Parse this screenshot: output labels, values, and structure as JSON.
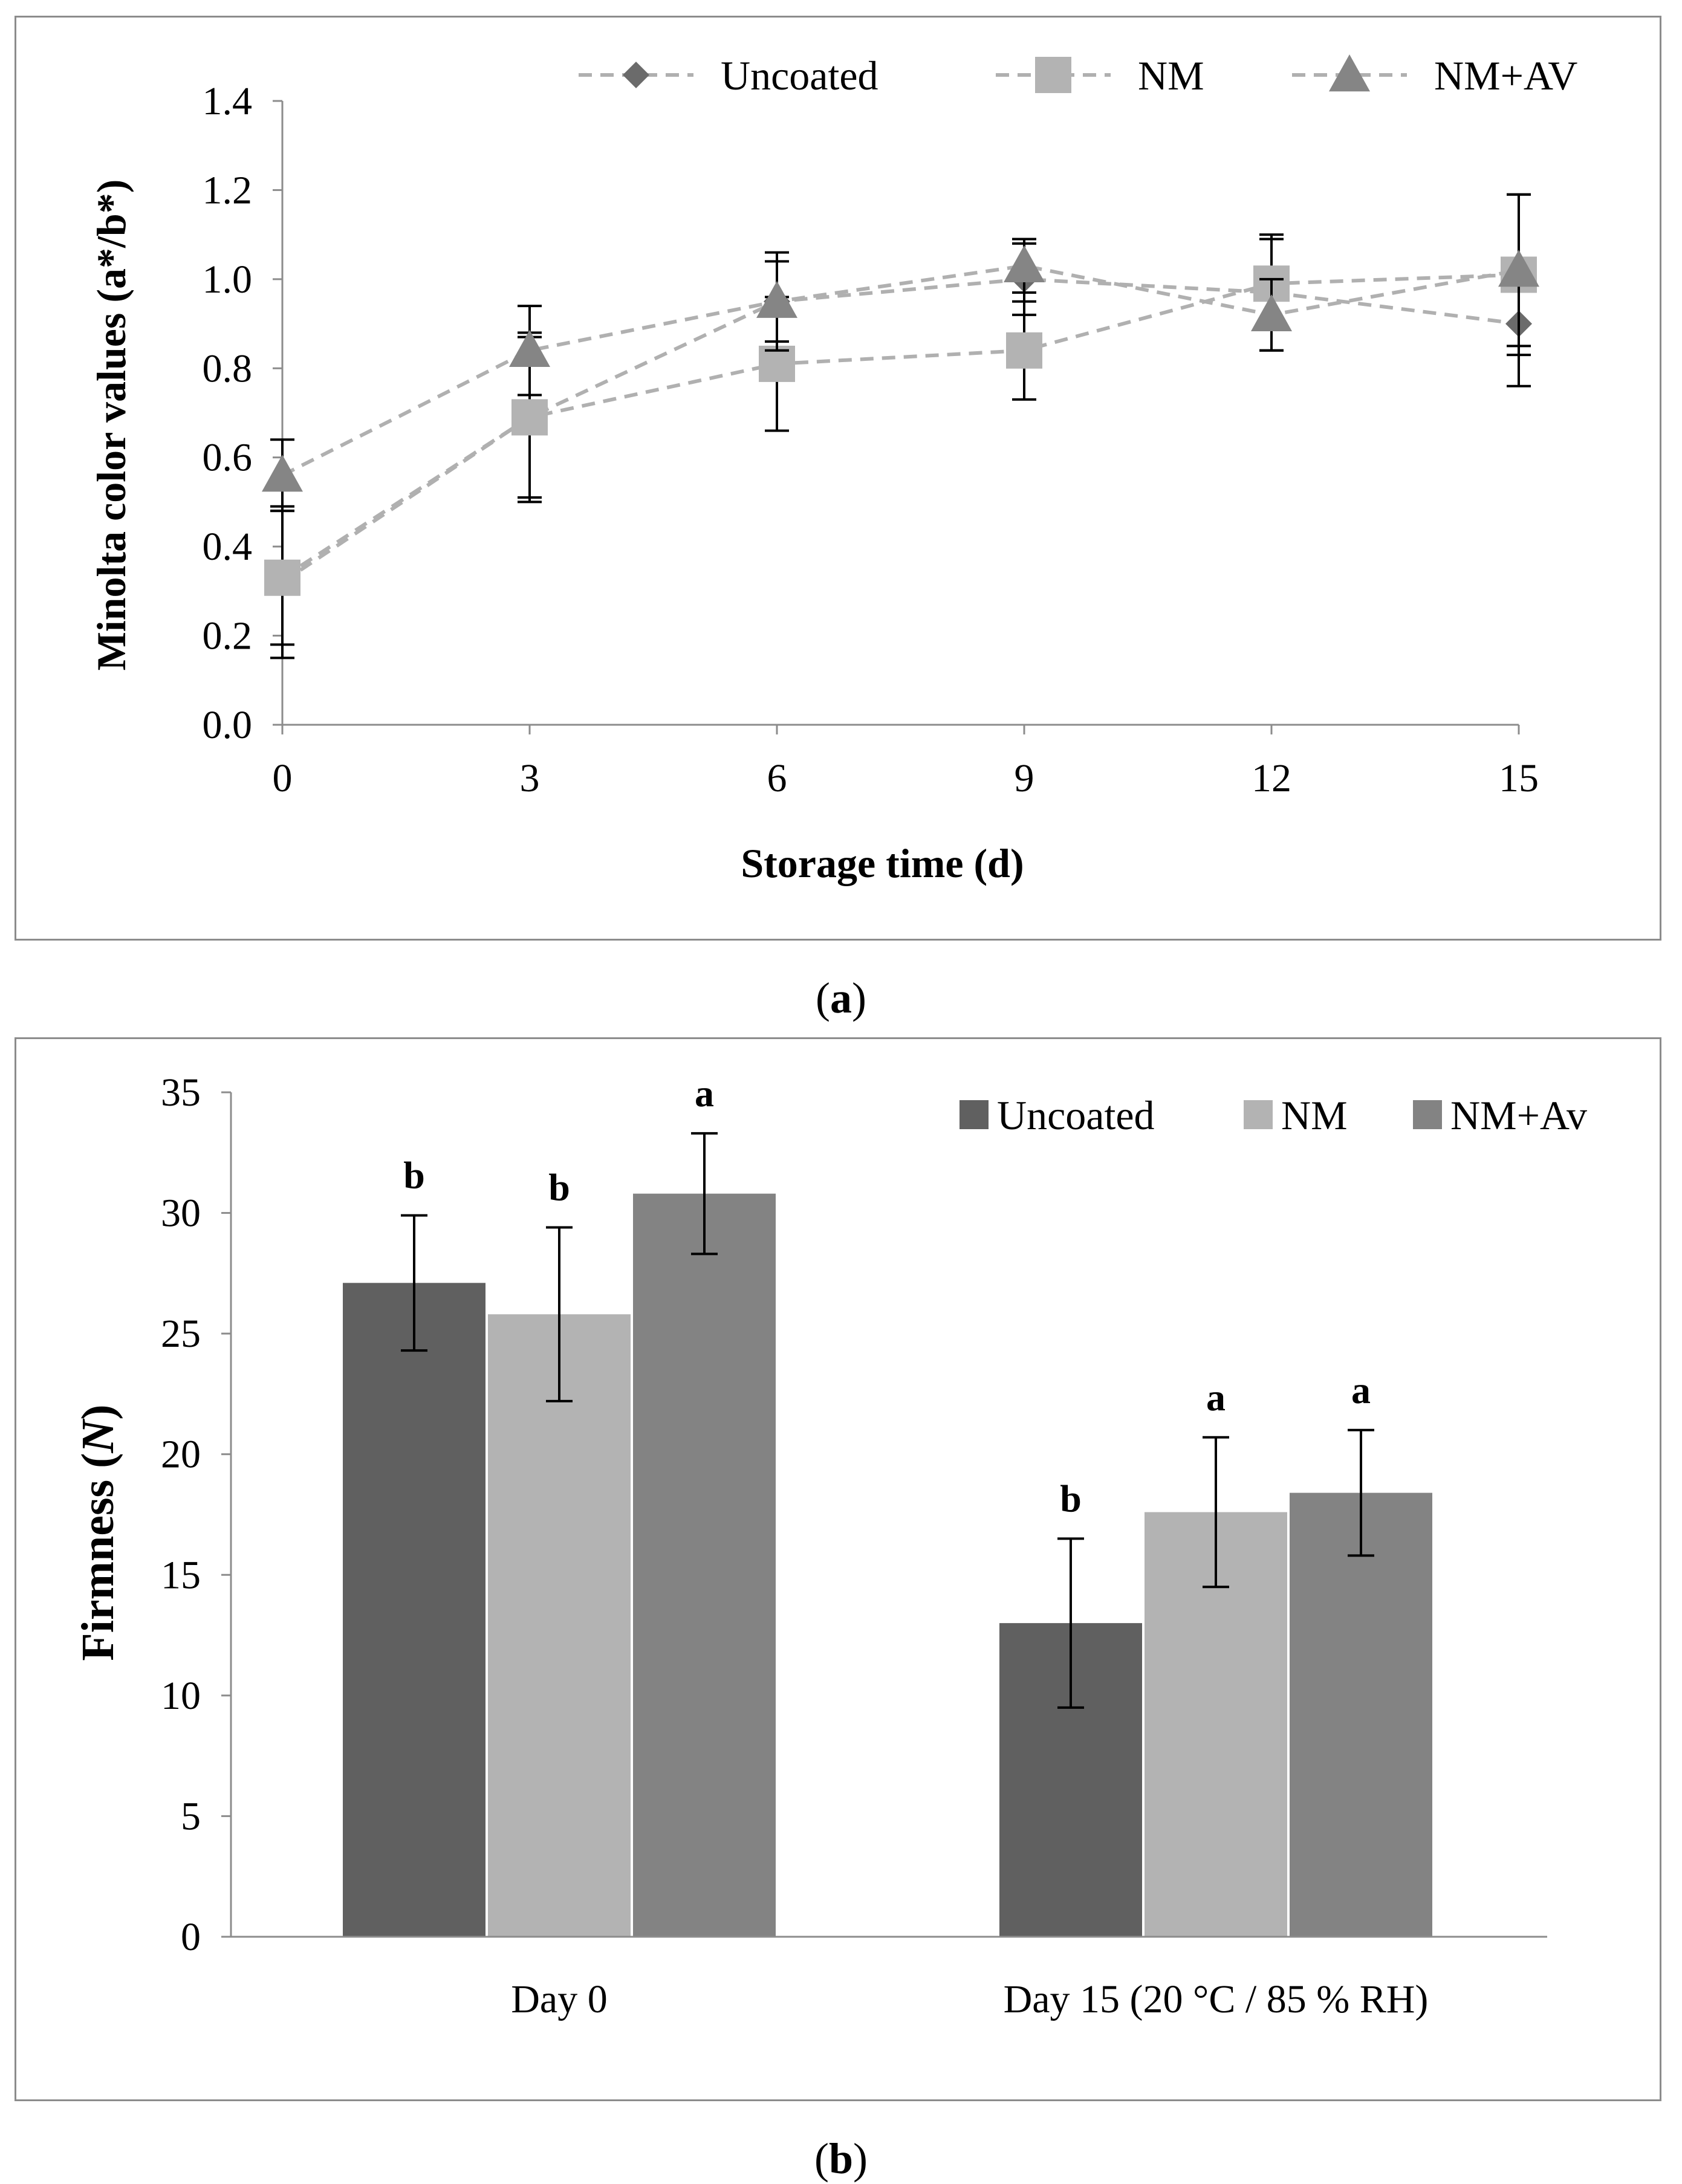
{
  "chart_data": [
    {
      "panel": "a",
      "type": "line",
      "caption_letter": "a",
      "xlabel": "Storage time (d)",
      "ylabel": "Minolta color values (a*/b*)",
      "ylim": [
        0,
        1.4
      ],
      "yticks": [
        "0.0",
        "0.2",
        "0.4",
        "0.6",
        "0.8",
        "1.0",
        "1.2",
        "1.4"
      ],
      "x": [
        0,
        3,
        6,
        9,
        12,
        15
      ],
      "xticks": [
        "0",
        "3",
        "6",
        "9",
        "12",
        "15"
      ],
      "legend_position": "top",
      "series": [
        {
          "name": "Uncoated",
          "marker": "diamond",
          "color": "#6b6b6b",
          "values": [
            0.32,
            0.69,
            0.95,
            1.0,
            0.97,
            0.9
          ],
          "errors": [
            0.17,
            0.19,
            0.09,
            0.08,
            0.13,
            0.14
          ]
        },
        {
          "name": "NM",
          "marker": "square",
          "color": "#b3b3b3",
          "values": [
            0.33,
            0.69,
            0.81,
            0.84,
            0.99,
            1.01
          ],
          "errors": [
            0.15,
            0.18,
            0.15,
            0.11,
            0.1,
            0.18
          ]
        },
        {
          "name": "NM+AV",
          "marker": "triangle",
          "color": "#858585",
          "values": [
            0.56,
            0.84,
            0.95,
            1.03,
            0.92,
            1.02
          ],
          "errors": [
            0.08,
            0.1,
            0.11,
            0.06,
            0.08,
            0.17
          ]
        }
      ]
    },
    {
      "panel": "b",
      "type": "bar",
      "caption_letter": "b",
      "ylabel_prefix": "Firmness (",
      "ylabel_italic": "N",
      "ylabel_suffix": ")",
      "ylim": [
        0,
        35
      ],
      "yticks": [
        "0",
        "5",
        "10",
        "15",
        "20",
        "25",
        "30",
        "35"
      ],
      "categories": [
        "Day 0",
        "Day 15  (20 °C / 85 % RH)"
      ],
      "legend_position": "top-right",
      "series": [
        {
          "name": "Uncoated",
          "color": "#606060",
          "values": [
            27.1,
            13.0
          ],
          "errors": [
            2.8,
            3.5
          ],
          "labels": [
            "b",
            "b"
          ]
        },
        {
          "name": "NM",
          "color": "#b3b3b3",
          "values": [
            25.8,
            17.6
          ],
          "errors": [
            3.6,
            3.1
          ],
          "labels": [
            "b",
            "a"
          ]
        },
        {
          "name": "NM+Av",
          "color": "#838383",
          "values": [
            30.8,
            18.4
          ],
          "errors": [
            2.5,
            2.6
          ],
          "labels": [
            "a",
            "a"
          ]
        }
      ]
    }
  ]
}
